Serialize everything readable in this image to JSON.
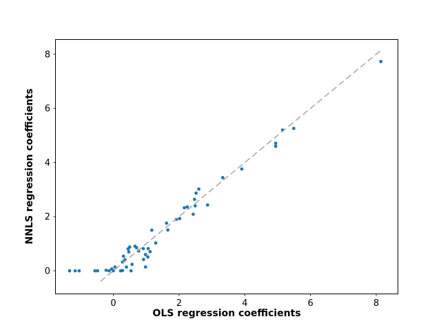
{
  "chart_data": {
    "type": "scatter",
    "title": "",
    "xlabel": "OLS regression coefficients",
    "ylabel": "NNLS regression coefficients",
    "xlim": [
      -1.75,
      8.65
    ],
    "ylim": [
      -0.84,
      8.53
    ],
    "xticks": [
      0,
      2,
      4,
      6,
      8
    ],
    "yticks": [
      0,
      2,
      4,
      6,
      8
    ],
    "grid": false,
    "legend": "none",
    "colors": {
      "marker": "#1f77b4",
      "identity_line": "#a6a6a6",
      "axes": "#000000",
      "background": "#ffffff"
    },
    "series": [
      {
        "name": "coefficients",
        "type": "scatter",
        "color": "#1f77b4",
        "marker_radius": 2.4,
        "points": [
          [
            -1.33,
            0.0
          ],
          [
            -1.16,
            0.0
          ],
          [
            -1.04,
            0.0
          ],
          [
            -0.56,
            0.0
          ],
          [
            -0.48,
            0.0
          ],
          [
            -0.22,
            0.02
          ],
          [
            -0.13,
            0.0
          ],
          [
            -0.05,
            0.07
          ],
          [
            0.0,
            0.0
          ],
          [
            0.05,
            0.14
          ],
          [
            0.22,
            0.0
          ],
          [
            0.28,
            0.01
          ],
          [
            0.54,
            0.0
          ],
          [
            0.28,
            0.32
          ],
          [
            0.31,
            0.54
          ],
          [
            0.35,
            0.41
          ],
          [
            0.4,
            0.14
          ],
          [
            0.45,
            0.81
          ],
          [
            0.47,
            0.7
          ],
          [
            0.5,
            0.88
          ],
          [
            0.57,
            0.24
          ],
          [
            0.66,
            0.91
          ],
          [
            0.71,
            0.85
          ],
          [
            0.77,
            0.73
          ],
          [
            0.91,
            0.82
          ],
          [
            0.92,
            0.42
          ],
          [
            0.98,
            0.14
          ],
          [
            0.98,
            0.6
          ],
          [
            1.05,
            0.51
          ],
          [
            1.06,
            0.82
          ],
          [
            1.12,
            0.71
          ],
          [
            1.17,
            1.5
          ],
          [
            1.29,
            1.03
          ],
          [
            1.62,
            1.76
          ],
          [
            1.66,
            1.51
          ],
          [
            1.92,
            1.9
          ],
          [
            2.02,
            1.93
          ],
          [
            2.16,
            2.33
          ],
          [
            2.25,
            2.36
          ],
          [
            2.43,
            2.09
          ],
          [
            2.47,
            2.64
          ],
          [
            2.49,
            2.4
          ],
          [
            2.52,
            2.87
          ],
          [
            2.6,
            3.02
          ],
          [
            2.87,
            2.43
          ],
          [
            3.33,
            3.44
          ],
          [
            3.91,
            3.76
          ],
          [
            4.94,
            4.6
          ],
          [
            4.94,
            4.71
          ],
          [
            5.15,
            5.2
          ],
          [
            5.49,
            5.26
          ],
          [
            8.14,
            7.73
          ]
        ]
      },
      {
        "name": "identity-line",
        "type": "line",
        "style": "dashed",
        "color": "#a6a6a6",
        "stroke_width": 1.5,
        "points": [
          [
            -0.39,
            -0.39
          ],
          [
            8.12,
            8.12
          ]
        ]
      }
    ]
  }
}
